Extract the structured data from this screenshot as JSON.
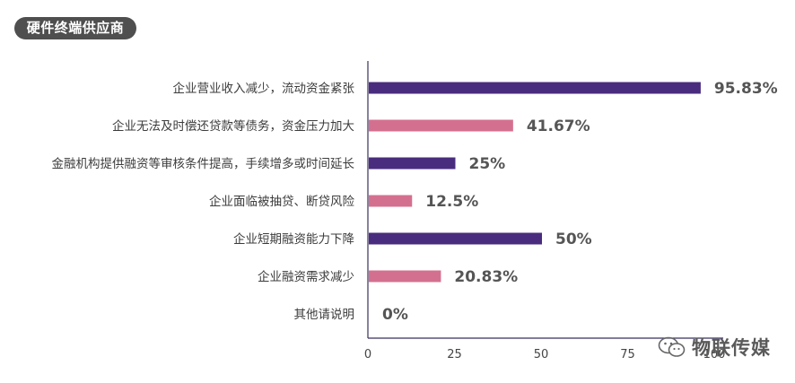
{
  "header": {
    "title": "硬件终端供应商"
  },
  "watermark": {
    "text": "物联传媒",
    "icon": "wechat-icon"
  },
  "colors": {
    "dark": "#4a2c7e",
    "pink": "#d4708f",
    "axis": "#3a2f5e"
  },
  "chart_data": {
    "type": "bar",
    "orientation": "horizontal",
    "categories": [
      "企业营业收入减少，流动资金紧张",
      "企业无法及时偿还贷款等债务，资金压力加大",
      "金融机构提供融资等审核条件提高，手续增多或时间延长",
      "企业面临被抽贷、断贷风险",
      "企业短期融资能力下降",
      "企业融资需求减少",
      "其他请说明"
    ],
    "values": [
      95.83,
      41.67,
      25,
      12.5,
      50,
      20.83,
      0
    ],
    "value_labels": [
      "95.83%",
      "41.67%",
      "25%",
      "12.5%",
      "50%",
      "20.83%",
      "0%"
    ],
    "bar_colors": [
      "#4a2c7e",
      "#d4708f",
      "#4a2c7e",
      "#d4708f",
      "#4a2c7e",
      "#d4708f",
      "#4a2c7e"
    ],
    "xticks": [
      0,
      25,
      50,
      75,
      100
    ],
    "xtick_labels": [
      "0",
      "25",
      "50",
      "75",
      "100"
    ],
    "xlim": [
      0,
      100
    ],
    "grid": false,
    "legend": false
  }
}
